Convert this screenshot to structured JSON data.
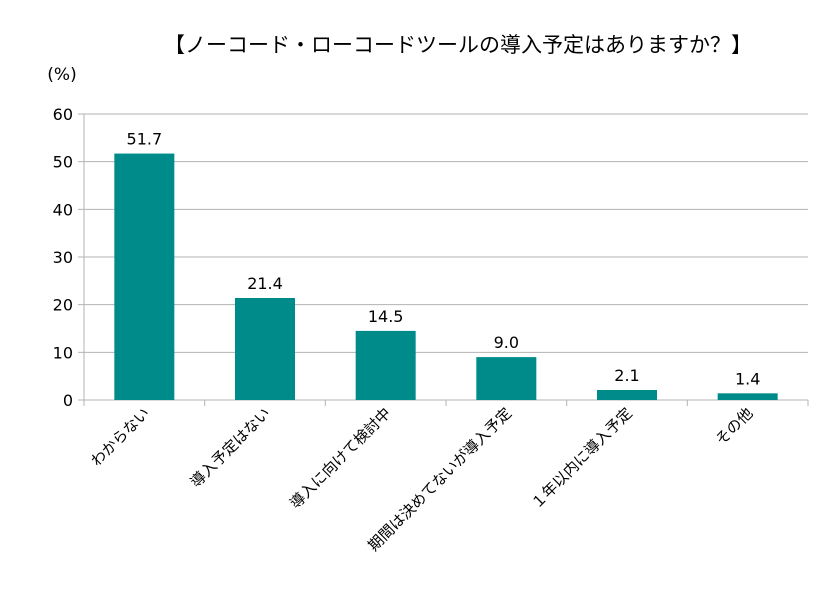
{
  "chart_data": {
    "type": "bar",
    "title": "【ノーコード・ローコードツールの導入予定はありますか？】",
    "ylabel": "(%)",
    "xlabel": "",
    "categories": [
      "わからない",
      "導入予定はない",
      "導入に向けて検討中",
      "期間は決めてないが導入予定",
      "１年以内に導入予定",
      "その他"
    ],
    "values": [
      51.7,
      21.4,
      14.5,
      9.0,
      2.1,
      1.4
    ],
    "value_labels": [
      "51.7",
      "21.4",
      "14.5",
      "9.0",
      "2.1",
      "1.4"
    ],
    "ylim": [
      0,
      60
    ],
    "yticks": [
      0,
      10,
      20,
      30,
      40,
      50,
      60
    ],
    "grid": true,
    "bar_color": "#008b8b"
  }
}
